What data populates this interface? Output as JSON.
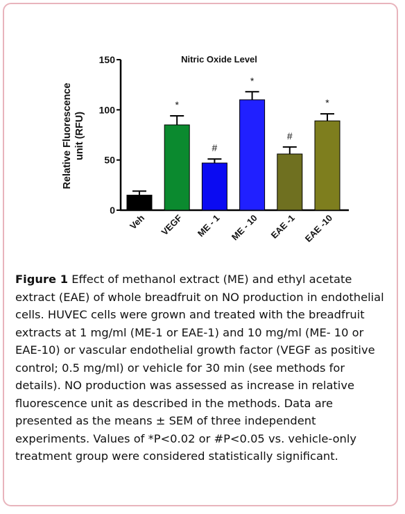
{
  "chart_data": {
    "type": "bar",
    "title": "Nitric Oxide Level",
    "ylabel": "Relative Fluorescence unit (RFU)",
    "ylabel_lines": [
      "Relative Fluorescence",
      "unit (RFU)"
    ],
    "categories": [
      "Veh",
      "VEGF",
      "ME - 1",
      "ME - 10",
      "EAE -1",
      "EAE -10"
    ],
    "values": [
      15,
      85,
      47,
      110,
      56,
      89
    ],
    "errors": [
      4,
      9,
      4,
      8,
      7,
      7
    ],
    "annotations": [
      "",
      "*",
      "#",
      "*",
      "#",
      "*"
    ],
    "colors": [
      "#000000",
      "#0b8a2f",
      "#0b0bf2",
      "#2020ff",
      "#6f7020",
      "#7e7e1e"
    ],
    "ylim": [
      0,
      150
    ],
    "yticks": [
      0,
      50,
      100,
      150
    ],
    "grid": false,
    "legend": "none"
  },
  "caption": {
    "label": "Figure 1",
    "text": "Effect of methanol extract (ME) and ethyl acetate extract (EAE) of whole breadfruit on NO production in endothelial cells. HUVEC cells were grown and treated with the breadfruit extracts at 1 mg/ml (ME-1 or EAE-1) and 10 mg/ml (ME- 10 or EAE-10) or vascular endothelial growth factor (VEGF as positive control; 0.5 mg/ml) or vehicle for 30 min (see methods for details). NO production was assessed as increase in relative fluorescence unit as described in the methods. Data are presented as the means ± SEM of three independent experiments. Values of *P<0.02 or #P<0.05 vs. vehicle-only treatment group were considered statistically significant."
  }
}
